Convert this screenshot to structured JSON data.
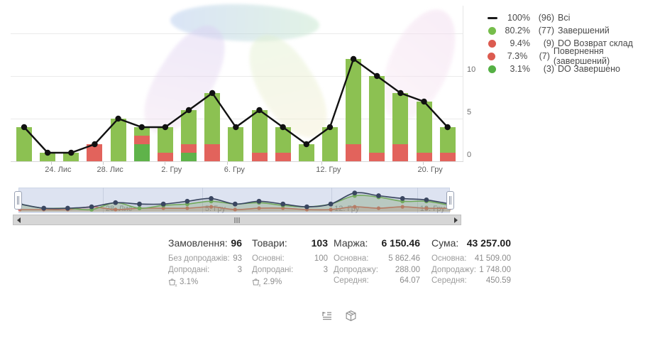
{
  "legend": {
    "items": [
      {
        "marker": "line",
        "color": "#1A1A1A",
        "percent": "100%",
        "count": "(96)",
        "label": "Всі"
      },
      {
        "marker": "dot",
        "color": "#76BD4B",
        "percent": "80.2%",
        "count": "(77)",
        "label": "Завершений"
      },
      {
        "marker": "dot",
        "color": "#DC5B50",
        "percent": "9.4%",
        "count": "(9)",
        "label": "DO Возврат склад"
      },
      {
        "marker": "dot",
        "color": "#DC5B50",
        "percent": "7.3%",
        "count": "(7)",
        "label": "Повернення (завершений)"
      },
      {
        "marker": "dot",
        "color": "#55B044",
        "percent": "3.1%",
        "count": "(3)",
        "label": "DO Завершено"
      }
    ]
  },
  "chart_data": {
    "type": "bar",
    "subtype": "stacked daily bars with total line overlay",
    "n_points": 19,
    "ylim": [
      0,
      15
    ],
    "grid": "horizontal",
    "legend_position": "top-right",
    "y_ticks": [
      {
        "label": "0",
        "value": 0
      },
      {
        "label": "5",
        "value": 5
      },
      {
        "label": "10",
        "value": 10
      }
    ],
    "x_tick_labels": [
      {
        "text": "24. Лис",
        "pos_pct": 10.5
      },
      {
        "text": "28. Лис",
        "pos_pct": 22.0
      },
      {
        "text": "2. Гру",
        "pos_pct": 35.6
      },
      {
        "text": "6. Гру",
        "pos_pct": 49.5
      },
      {
        "text": "12. Гру",
        "pos_pct": 70.3
      },
      {
        "text": "20. Гру",
        "pos_pct": 92.8
      }
    ],
    "line_series": {
      "name": "Всі",
      "color": "#111111",
      "total": 96,
      "values": [
        4,
        1,
        1,
        2,
        5,
        4,
        4,
        6,
        8,
        4,
        6,
        4,
        2,
        4,
        12,
        10,
        8,
        7,
        4
      ]
    },
    "bar_series": [
      {
        "name": "DO Завершено",
        "color": "#5FB34A",
        "stack": "bottom",
        "total": 3,
        "values": [
          0,
          0,
          0,
          0,
          0,
          2,
          0,
          1,
          0,
          0,
          0,
          0,
          0,
          0,
          0,
          0,
          0,
          0,
          0
        ]
      },
      {
        "name": "Повернення / DO Возврат склад",
        "color": "#E2635C",
        "stack": "middle",
        "total": 16,
        "values": [
          0,
          0,
          0,
          2,
          0,
          1,
          1,
          1,
          2,
          0,
          1,
          1,
          0,
          0,
          2,
          1,
          2,
          1,
          1
        ]
      },
      {
        "name": "Завершений",
        "color": "#8CC152",
        "stack": "top",
        "total": 77,
        "values": [
          4,
          1,
          1,
          0,
          5,
          1,
          3,
          4,
          6,
          4,
          5,
          3,
          2,
          4,
          10,
          9,
          6,
          6,
          3
        ]
      }
    ]
  },
  "navigator": {
    "x_labels": [
      {
        "text": "28. Лис",
        "pos_pct": 20.4
      },
      {
        "text": "5. Гру",
        "pos_pct": 42.9
      },
      {
        "text": "12. Гру",
        "pos_pct": 72.2
      },
      {
        "text": "19. Гру",
        "pos_pct": 91.6
      }
    ],
    "colors": {
      "background": "#DDE3F1",
      "total_line": "#3A4660",
      "completed_line": "#7CB85C",
      "returns_line": "#D8736C"
    }
  },
  "stats": {
    "columns": [
      {
        "title": "Замовлення:",
        "value": "96",
        "basket_pct": "3.1%",
        "rows": [
          {
            "label": "Без допродажів:",
            "value": "93"
          },
          {
            "label": "Допродані:",
            "value": "3"
          }
        ]
      },
      {
        "title": "Товари:",
        "value": "103",
        "basket_pct": "2.9%",
        "rows": [
          {
            "label": "Основні:",
            "value": "100"
          },
          {
            "label": "Допродані:",
            "value": "3"
          }
        ]
      },
      {
        "title": "Маржа:",
        "value": "6 150.46",
        "rows": [
          {
            "label": "Основна:",
            "value": "5 862.46"
          },
          {
            "label": "Допродажу:",
            "value": "288.00"
          },
          {
            "label": "Середня:",
            "value": "64.07"
          }
        ]
      },
      {
        "title": "Сума:",
        "value": "43 257.00",
        "rows": [
          {
            "label": "Основна:",
            "value": "41 509.00"
          },
          {
            "label": "Допродажу:",
            "value": "1 748.00"
          },
          {
            "label": "Середня:",
            "value": "450.59"
          }
        ]
      }
    ]
  },
  "colors": {
    "bar_green": "#8CC152",
    "bar_green_do": "#5FB34A",
    "bar_red": "#E2635C",
    "line": "#111111",
    "grid": "#EAEAEA"
  }
}
